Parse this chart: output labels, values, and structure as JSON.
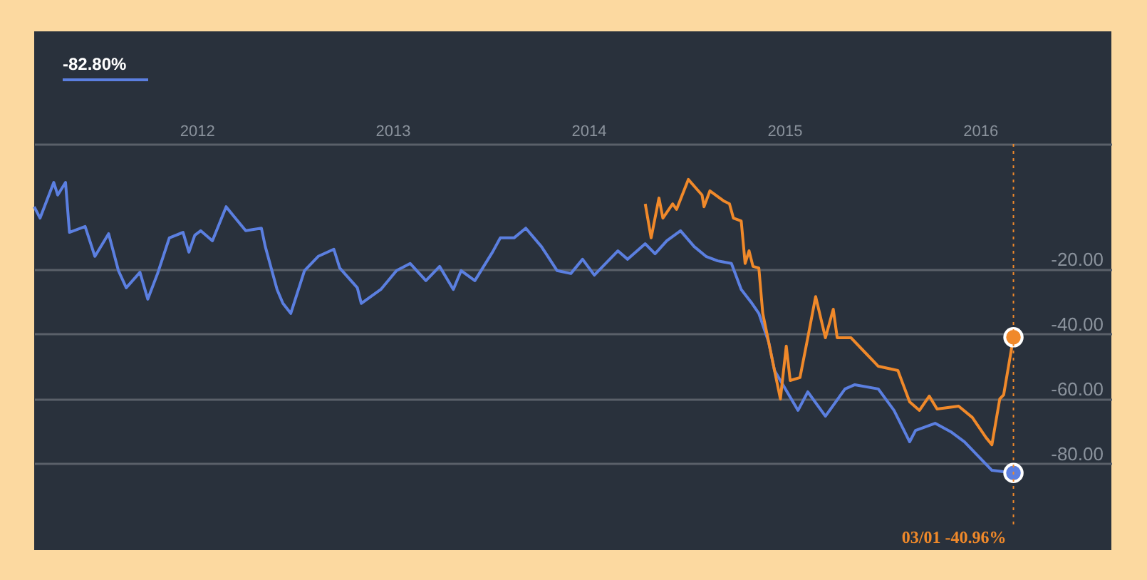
{
  "chart_data": {
    "type": "line",
    "xlim": [
      2011.17,
      2016.67
    ],
    "ylim": [
      -106.6,
      53.4
    ],
    "xticks": [
      2012,
      2013,
      2014,
      2015,
      2016
    ],
    "yticks": [
      {
        "value": -20,
        "label": "-20.00"
      },
      {
        "value": -40,
        "label": "-40.00"
      },
      {
        "value": -60,
        "label": "-60.00"
      },
      {
        "value": -80,
        "label": "-80.00"
      }
    ],
    "grid": "y",
    "line_style": "solid",
    "ref_lines": [
      {
        "axis": "x",
        "value": 2016.17,
        "color": "#f0892a",
        "line_style": "dotted"
      }
    ],
    "annotations": [
      "-82.80%",
      "03/01  -40.96%"
    ],
    "series": [
      {
        "color": "#5b7fe0",
        "x": [
          2011.17,
          2011.2,
          2011.27,
          2011.29,
          2011.33,
          2011.35,
          2011.43,
          2011.48,
          2011.55,
          2011.6,
          2011.64,
          2011.71,
          2011.75,
          2011.8,
          2011.86,
          2011.93,
          2011.96,
          2011.99,
          2012.02,
          2012.08,
          2012.15,
          2012.19,
          2012.25,
          2012.33,
          2012.35,
          2012.41,
          2012.44,
          2012.48,
          2012.55,
          2012.62,
          2012.7,
          2012.73,
          2012.82,
          2012.84,
          2012.94,
          2013.02,
          2013.09,
          2013.17,
          2013.24,
          2013.31,
          2013.35,
          2013.42,
          2013.51,
          2013.55,
          2013.62,
          2013.68,
          2013.76,
          2013.84,
          2013.91,
          2013.97,
          2014.03,
          2014.15,
          2014.2,
          2014.29,
          2014.34,
          2014.4,
          2014.47,
          2014.54,
          2014.6,
          2014.66,
          2014.73,
          2014.78,
          2014.83,
          2014.87,
          2014.92,
          2014.95,
          2015.07,
          2015.12,
          2015.21,
          2015.31,
          2015.36,
          2015.48,
          2015.56,
          2015.64,
          2015.67,
          2015.77,
          2015.85,
          2015.92,
          2015.99,
          2016.06,
          2016.17
        ],
        "values": [
          -0.7,
          -4.2,
          6.8,
          2.9,
          6.8,
          -8.6,
          -6.8,
          -16.0,
          -9.0,
          -20.4,
          -25.7,
          -20.9,
          -29.2,
          -21.3,
          -10.3,
          -8.6,
          -14.7,
          -9.5,
          -8.1,
          -11.2,
          -0.7,
          -3.7,
          -8.1,
          -7.3,
          -13.0,
          -26.2,
          -30.5,
          -33.6,
          -20.4,
          -16.0,
          -13.8,
          -19.6,
          -25.7,
          -30.5,
          -26.2,
          -20.4,
          -18.2,
          -23.5,
          -19.1,
          -26.2,
          -20.4,
          -23.5,
          -14.7,
          -10.3,
          -10.3,
          -7.3,
          -13.0,
          -20.4,
          -21.3,
          -16.9,
          -21.8,
          -14.3,
          -16.9,
          -12.1,
          -15.2,
          -11.2,
          -8.1,
          -13.0,
          -16.0,
          -17.4,
          -18.2,
          -26.2,
          -30.1,
          -33.6,
          -42.4,
          -51.2,
          -63.5,
          -57.8,
          -65.3,
          -56.9,
          -55.6,
          -56.9,
          -63.5,
          -73.2,
          -69.7,
          -67.5,
          -70.1,
          -73.2,
          -77.6,
          -82.0,
          -82.8
        ]
      },
      {
        "color": "#f0892a",
        "x": [
          2014.29,
          2014.32,
          2014.36,
          2014.38,
          2014.43,
          2014.45,
          2014.51,
          2014.58,
          2014.59,
          2014.62,
          2014.69,
          2014.72,
          2014.74,
          2014.78,
          2014.8,
          2014.82,
          2014.84,
          2014.87,
          2014.89,
          2014.92,
          2014.98,
          2015.01,
          2015.03,
          2015.08,
          2015.12,
          2015.16,
          2015.21,
          2015.25,
          2015.27,
          2015.34,
          2015.41,
          2015.48,
          2015.58,
          2015.64,
          2015.69,
          2015.74,
          2015.78,
          2015.89,
          2015.96,
          2016.03,
          2016.06,
          2016.1,
          2016.12,
          2016.17
        ],
        "values": [
          0.2,
          -10.3,
          2.0,
          -4.2,
          0.2,
          -1.5,
          7.7,
          2.9,
          -0.7,
          4.2,
          1.1,
          0.2,
          -4.2,
          -5.1,
          -18.2,
          -14.3,
          -19.1,
          -19.6,
          -33.6,
          -42.4,
          -60.0,
          -43.7,
          -54.3,
          -53.4,
          -41.1,
          -28.4,
          -41.1,
          -32.3,
          -41.1,
          -41.1,
          -45.5,
          -49.9,
          -51.2,
          -60.9,
          -63.5,
          -59.1,
          -63.1,
          -62.2,
          -65.7,
          -71.9,
          -74.1,
          -60.0,
          -58.7,
          -40.96
        ]
      },
      {
        "type": "scatter",
        "color": "#5b7fe0",
        "x": [
          2016.17
        ],
        "values": [
          -82.8
        ]
      },
      {
        "type": "scatter",
        "color": "#f0892a",
        "x": [
          2016.17
        ],
        "values": [
          -40.96
        ]
      }
    ]
  }
}
